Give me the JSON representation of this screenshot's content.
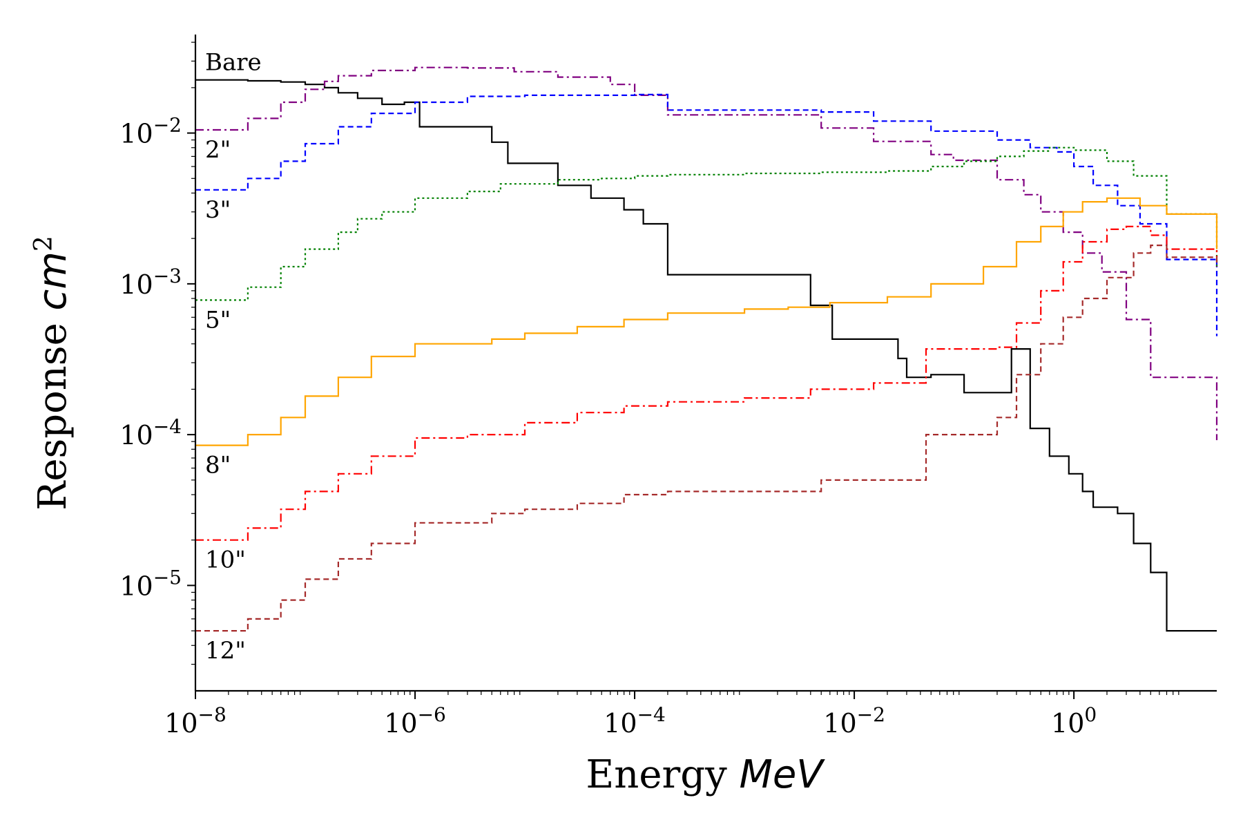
{
  "chart_data": {
    "type": "line",
    "title": "",
    "xlabel": "Energy",
    "xlabel_unit": "MeV",
    "ylabel": "Response",
    "ylabel_unit": "cm",
    "ylabel_unit_exp": "2",
    "xscale": "log",
    "yscale": "log",
    "xlim": [
      1e-08,
      20
    ],
    "ylim": [
      2e-06,
      0.045
    ],
    "grid": false,
    "legend": "none",
    "step": true,
    "x_ticks": [
      {
        "base": "10",
        "exp": "−8",
        "value": 1e-08
      },
      {
        "base": "10",
        "exp": "−6",
        "value": 1e-06
      },
      {
        "base": "10",
        "exp": "−4",
        "value": 0.0001
      },
      {
        "base": "10",
        "exp": "−2",
        "value": 0.01
      },
      {
        "base": "10",
        "exp": "0",
        "value": 1
      }
    ],
    "y_ticks": [
      {
        "base": "10",
        "exp": "−2",
        "value": 0.01
      },
      {
        "base": "10",
        "exp": "−3",
        "value": 0.001
      },
      {
        "base": "10",
        "exp": "−4",
        "value": 0.0001
      },
      {
        "base": "10",
        "exp": "−5",
        "value": 1e-05
      }
    ],
    "series": [
      {
        "name": "Bare",
        "color": "#000000",
        "dash": "",
        "x": [
          1e-08,
          3e-08,
          6e-08,
          1e-07,
          1.5e-07,
          2e-07,
          3e-07,
          5e-07,
          8e-07,
          1.1e-06,
          5e-06,
          7e-06,
          2e-05,
          4e-05,
          8e-05,
          0.00012,
          0.0002,
          0.004,
          0.0063,
          0.025,
          0.03,
          0.05,
          0.1,
          0.2,
          0.27,
          0.4,
          0.6,
          0.9,
          1.2,
          1.5,
          2.5,
          3.5,
          5,
          7,
          20
        ],
        "y": [
          0.0225,
          0.0222,
          0.0218,
          0.021,
          0.02,
          0.0185,
          0.017,
          0.0155,
          0.016,
          0.011,
          0.0087,
          0.0063,
          0.0045,
          0.0037,
          0.0031,
          0.0025,
          0.00115,
          0.00072,
          0.00043,
          0.00032,
          0.00024,
          0.00025,
          0.00019,
          0.00019,
          0.00037,
          0.00011,
          7.2e-05,
          5.5e-05,
          4.2e-05,
          3.3e-05,
          3e-05,
          1.9e-05,
          1.22e-05,
          5e-06,
          5e-06
        ]
      },
      {
        "name": "2\"",
        "color": "#800080",
        "dash": "12,5,3,5",
        "x": [
          1e-08,
          3e-08,
          6e-08,
          1e-07,
          1.5e-07,
          2e-07,
          4e-07,
          1e-06,
          3e-06,
          8e-06,
          2e-05,
          6e-05,
          0.0001,
          0.0002,
          0.005,
          0.015,
          0.05,
          0.08,
          0.2,
          0.35,
          0.5,
          0.8,
          1.2,
          1.8,
          3,
          5,
          20
        ],
        "y": [
          0.0105,
          0.0125,
          0.016,
          0.0195,
          0.022,
          0.024,
          0.026,
          0.0272,
          0.027,
          0.0255,
          0.0235,
          0.021,
          0.0178,
          0.0132,
          0.0108,
          0.0088,
          0.0072,
          0.0066,
          0.0049,
          0.0039,
          0.003,
          0.0022,
          0.0016,
          0.0012,
          0.00058,
          0.00024,
          9.2e-05
        ]
      },
      {
        "name": "3\"",
        "color": "#0000ff",
        "dash": "8,5",
        "x": [
          1e-08,
          3e-08,
          6e-08,
          1e-07,
          2e-07,
          4e-07,
          1e-06,
          3e-06,
          1e-05,
          0.0001,
          0.0002,
          0.005,
          0.015,
          0.05,
          0.2,
          0.4,
          0.7,
          1,
          1.5,
          2.5,
          4,
          7,
          20
        ],
        "y": [
          0.0042,
          0.005,
          0.0065,
          0.0085,
          0.011,
          0.0135,
          0.016,
          0.0175,
          0.0178,
          0.018,
          0.0142,
          0.0138,
          0.012,
          0.0103,
          0.009,
          0.008,
          0.0075,
          0.006,
          0.0045,
          0.0033,
          0.0025,
          0.00145,
          0.00045
        ]
      },
      {
        "name": "5\"",
        "color": "#008000",
        "dash": "3,4",
        "x": [
          1e-08,
          3e-08,
          6e-08,
          1e-07,
          2e-07,
          3e-07,
          5e-07,
          1e-06,
          3e-06,
          6e-06,
          2e-05,
          5e-05,
          0.0001,
          0.0002,
          0.001,
          0.005,
          0.02,
          0.05,
          0.1,
          0.2,
          0.35,
          0.6,
          1,
          2,
          3.5,
          7,
          20
        ],
        "y": [
          0.00078,
          0.00095,
          0.0013,
          0.0017,
          0.0022,
          0.0027,
          0.003,
          0.0037,
          0.0041,
          0.0046,
          0.0049,
          0.005,
          0.0052,
          0.0053,
          0.0054,
          0.0055,
          0.0056,
          0.006,
          0.0065,
          0.007,
          0.0076,
          0.008,
          0.0077,
          0.0065,
          0.0052,
          0.0029,
          0.0013
        ]
      },
      {
        "name": "8\"",
        "color": "#ffa500",
        "dash": "",
        "x": [
          1e-08,
          3e-08,
          6e-08,
          1e-07,
          2e-07,
          4e-07,
          1e-06,
          5e-06,
          1e-05,
          3e-05,
          8e-05,
          0.0002,
          0.001,
          0.0025,
          0.006,
          0.02,
          0.05,
          0.15,
          0.3,
          0.5,
          0.8,
          1.2,
          2,
          4,
          7,
          20
        ],
        "y": [
          8.5e-05,
          0.0001,
          0.00013,
          0.00018,
          0.00024,
          0.00033,
          0.0004,
          0.00043,
          0.00047,
          0.00052,
          0.00058,
          0.00064,
          0.00068,
          0.0007,
          0.00075,
          0.00082,
          0.001,
          0.0013,
          0.0019,
          0.0024,
          0.003,
          0.0035,
          0.0037,
          0.0033,
          0.0029,
          0.0017
        ]
      },
      {
        "name": "10\"",
        "color": "#ff0000",
        "dash": "12,5,3,5",
        "x": [
          1e-08,
          3e-08,
          6e-08,
          1e-07,
          2e-07,
          4e-07,
          1e-06,
          3e-06,
          1e-05,
          3e-05,
          8e-05,
          0.0002,
          0.001,
          0.004,
          0.015,
          0.045,
          0.2,
          0.3,
          0.5,
          0.8,
          1.2,
          2,
          3,
          5,
          7,
          20
        ],
        "y": [
          2e-05,
          2.4e-05,
          3.2e-05,
          4.2e-05,
          5.5e-05,
          7.2e-05,
          9.5e-05,
          0.0001,
          0.00012,
          0.00014,
          0.000155,
          0.000165,
          0.000175,
          0.0002,
          0.00022,
          0.00037,
          0.00038,
          0.00055,
          0.0009,
          0.0014,
          0.0019,
          0.0023,
          0.0024,
          0.0021,
          0.0017,
          0.0015
        ]
      },
      {
        "name": "12\"",
        "color": "#a52a2a",
        "dash": "8,5",
        "x": [
          1e-08,
          3e-08,
          6e-08,
          1e-07,
          2e-07,
          4e-07,
          1e-06,
          5e-06,
          1e-05,
          3e-05,
          8e-05,
          0.0002,
          0.005,
          0.02,
          0.045,
          0.2,
          0.3,
          0.5,
          0.8,
          1.2,
          2,
          3.5,
          5,
          7,
          20
        ],
        "y": [
          5e-06,
          6e-06,
          8e-06,
          1.1e-05,
          1.5e-05,
          1.9e-05,
          2.6e-05,
          3e-05,
          3.2e-05,
          3.5e-05,
          4e-05,
          4.2e-05,
          5e-05,
          5e-05,
          0.0001,
          0.00013,
          0.00025,
          0.0004,
          0.0006,
          0.0008,
          0.0011,
          0.0016,
          0.0018,
          0.0015,
          0.0013
        ]
      }
    ],
    "series_labels": [
      "Bare",
      "2\"",
      "3\"",
      "5\"",
      "8\"",
      "10\"",
      "12\""
    ]
  }
}
